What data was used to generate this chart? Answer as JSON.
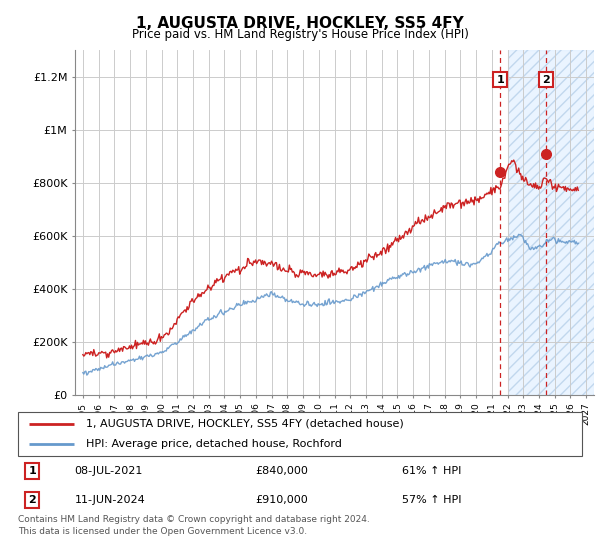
{
  "title": "1, AUGUSTA DRIVE, HOCKLEY, SS5 4FY",
  "subtitle": "Price paid vs. HM Land Registry's House Price Index (HPI)",
  "legend_line1": "1, AUGUSTA DRIVE, HOCKLEY, SS5 4FY (detached house)",
  "legend_line2": "HPI: Average price, detached house, Rochford",
  "footer": "Contains HM Land Registry data © Crown copyright and database right 2024.\nThis data is licensed under the Open Government Licence v3.0.",
  "sale1_date": "08-JUL-2021",
  "sale1_price": "£840,000",
  "sale1_hpi": "61% ↑ HPI",
  "sale1_year": 2021.53,
  "sale1_value": 840000,
  "sale2_date": "11-JUN-2024",
  "sale2_price": "£910,000",
  "sale2_hpi": "57% ↑ HPI",
  "sale2_year": 2024.44,
  "sale2_value": 910000,
  "red_color": "#cc2222",
  "blue_color": "#6699cc",
  "shade_start_year": 2022.0,
  "ylim": [
    0,
    1300000
  ],
  "xlim_start": 1994.5,
  "xlim_end": 2027.5,
  "yticks": [
    0,
    200000,
    400000,
    600000,
    800000,
    1000000,
    1200000
  ],
  "ylabels": [
    "£0",
    "£200K",
    "£400K",
    "£600K",
    "£800K",
    "£1M",
    "£1.2M"
  ],
  "xtick_start": 1995,
  "xtick_end": 2027
}
